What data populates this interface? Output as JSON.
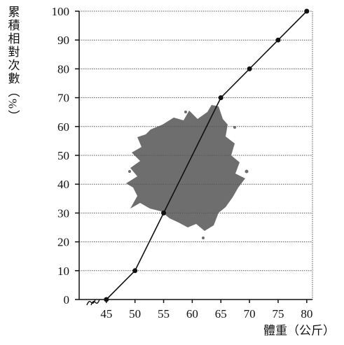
{
  "chart_data": {
    "type": "line",
    "y_label": "累積相對次數（%）",
    "x_label": "體重（公斤）",
    "x": [
      45,
      50,
      55,
      65,
      70,
      75,
      80
    ],
    "values": [
      0,
      10,
      30,
      70,
      80,
      90,
      100
    ],
    "color": "#111111",
    "xlim": [
      40.25,
      81
    ],
    "xticks": [
      45,
      50,
      55,
      60,
      65,
      70,
      75,
      80
    ],
    "ylim": [
      0,
      100
    ],
    "yticks": [
      0,
      10,
      20,
      30,
      40,
      50,
      60,
      70,
      80,
      90,
      100
    ],
    "grid": true
  }
}
